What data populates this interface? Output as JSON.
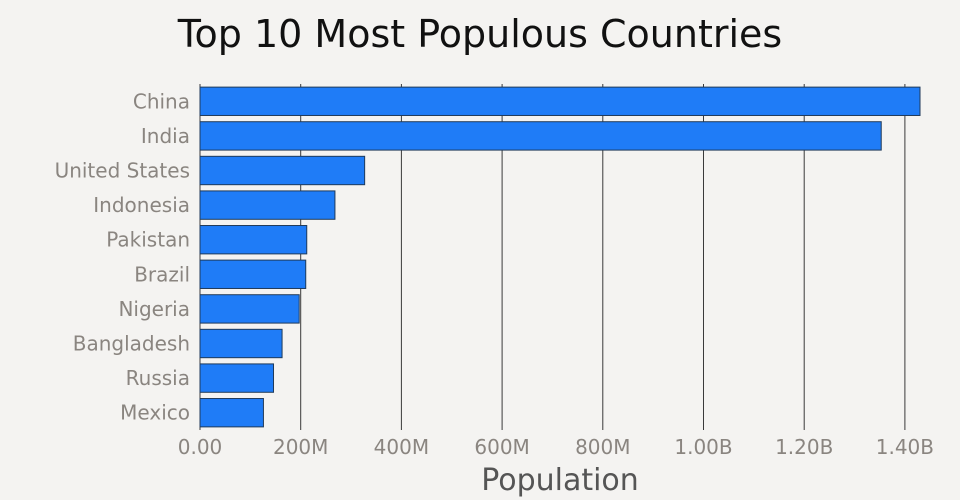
{
  "chart_data": {
    "type": "bar",
    "orientation": "horizontal",
    "title": "Top 10 Most Populous Countries",
    "xlabel": "Population",
    "ylabel": "",
    "categories": [
      "China",
      "India",
      "United States",
      "Indonesia",
      "Pakistan",
      "Brazil",
      "Nigeria",
      "Bangladesh",
      "Russia",
      "Mexico"
    ],
    "values": [
      1430000000,
      1353000000,
      327000000,
      268000000,
      212000000,
      210000000,
      197000000,
      163000000,
      146000000,
      126000000
    ],
    "xlim": [
      0,
      1430000000
    ],
    "xticks": [
      0,
      200000000,
      400000000,
      600000000,
      800000000,
      1000000000,
      1200000000,
      1400000000
    ],
    "xtick_labels": [
      "0.00",
      "200M",
      "400M",
      "600M",
      "800M",
      "1.00B",
      "1.20B",
      "1.40B"
    ],
    "grid": "vertical",
    "colors": {
      "bar": "#1f7cf7",
      "bar_stroke": "#1f3a5a",
      "grid": "#3a3a3a",
      "tick_label": "#8a8580",
      "axis_label": "#555",
      "background": "#f4f3f1"
    }
  }
}
